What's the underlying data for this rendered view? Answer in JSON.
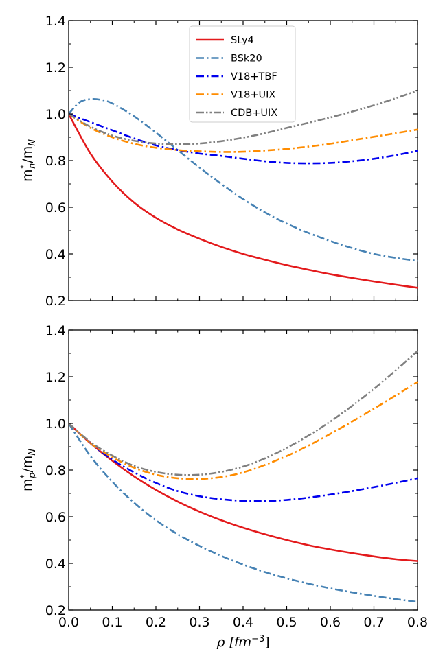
{
  "chart_data": [
    {
      "type": "line",
      "panel": "top",
      "title": "",
      "xlabel": "",
      "ylabel_base": "m",
      "ylabel_sup": "*",
      "ylabel_sub": "n",
      "ylabel_mid": "/m",
      "ylabel_sub2": "N",
      "xlim": [
        0.0,
        0.8
      ],
      "ylim": [
        0.2,
        1.4
      ],
      "xticks": [
        0.0,
        0.1,
        0.2,
        0.3,
        0.4,
        0.5,
        0.6,
        0.7,
        0.8
      ],
      "yticks": [
        0.2,
        0.4,
        0.6,
        0.8,
        1.0,
        1.2,
        1.4
      ],
      "ytick_labels": [
        "0.2",
        "0.4",
        "0.6",
        "0.8",
        "1.0",
        "1.2",
        "1.4"
      ],
      "show_xtick_labels": false,
      "legend": {
        "position": "top-center",
        "entries": [
          "SLy4",
          "BSk20",
          "V18+TBF",
          "V18+UIX",
          "CDB+UIX"
        ]
      },
      "series": [
        {
          "name": "SLy4",
          "color": "#e31a1c",
          "dash": "solid",
          "x": [
            0.0,
            0.05,
            0.1,
            0.15,
            0.2,
            0.25,
            0.3,
            0.35,
            0.4,
            0.45,
            0.5,
            0.55,
            0.6,
            0.65,
            0.7,
            0.75,
            0.8
          ],
          "values": [
            1.0,
            0.83,
            0.71,
            0.62,
            0.555,
            0.505,
            0.465,
            0.43,
            0.4,
            0.375,
            0.352,
            0.332,
            0.313,
            0.297,
            0.282,
            0.268,
            0.255
          ]
        },
        {
          "name": "BSk20",
          "color": "#4682b4",
          "dash": "dashdot",
          "x": [
            0.0,
            0.025,
            0.05,
            0.075,
            0.1,
            0.15,
            0.2,
            0.25,
            0.3,
            0.35,
            0.4,
            0.45,
            0.5,
            0.55,
            0.6,
            0.65,
            0.7,
            0.75,
            0.8
          ],
          "values": [
            1.0,
            1.05,
            1.063,
            1.06,
            1.045,
            0.99,
            0.92,
            0.845,
            0.77,
            0.7,
            0.635,
            0.578,
            0.53,
            0.49,
            0.455,
            0.425,
            0.4,
            0.383,
            0.37
          ]
        },
        {
          "name": "V18+TBF",
          "color": "#0000ee",
          "dash": "dashdot",
          "x": [
            0.0,
            0.05,
            0.1,
            0.15,
            0.2,
            0.25,
            0.3,
            0.35,
            0.4,
            0.45,
            0.5,
            0.55,
            0.6,
            0.65,
            0.7,
            0.75,
            0.8
          ],
          "values": [
            1.0,
            0.965,
            0.93,
            0.895,
            0.865,
            0.845,
            0.83,
            0.82,
            0.808,
            0.797,
            0.79,
            0.788,
            0.79,
            0.797,
            0.808,
            0.823,
            0.842
          ]
        },
        {
          "name": "V18+UIX",
          "color": "#ff8c00",
          "dash": "dashdot",
          "x": [
            0.0,
            0.05,
            0.1,
            0.15,
            0.2,
            0.25,
            0.3,
            0.35,
            0.4,
            0.45,
            0.5,
            0.55,
            0.6,
            0.65,
            0.7,
            0.75,
            0.8
          ],
          "values": [
            1.0,
            0.94,
            0.9,
            0.872,
            0.855,
            0.845,
            0.84,
            0.837,
            0.838,
            0.843,
            0.85,
            0.86,
            0.872,
            0.887,
            0.902,
            0.917,
            0.933
          ]
        },
        {
          "name": "CDB+UIX",
          "color": "#808080",
          "dash": "dashdotdot",
          "x": [
            0.0,
            0.05,
            0.1,
            0.15,
            0.2,
            0.25,
            0.3,
            0.35,
            0.4,
            0.45,
            0.5,
            0.55,
            0.6,
            0.65,
            0.7,
            0.75,
            0.8
          ],
          "values": [
            1.0,
            0.945,
            0.907,
            0.885,
            0.873,
            0.87,
            0.873,
            0.883,
            0.898,
            0.917,
            0.94,
            0.962,
            0.985,
            1.01,
            1.037,
            1.067,
            1.1
          ]
        }
      ]
    },
    {
      "type": "line",
      "panel": "bottom",
      "title": "",
      "xlabel_base": "ρ [fm",
      "xlabel_sup": "−3",
      "xlabel_end": "]",
      "ylabel_base": "m",
      "ylabel_sup": "*",
      "ylabel_sub": "p",
      "ylabel_mid": "/m",
      "ylabel_sub2": "N",
      "xlim": [
        0.0,
        0.8
      ],
      "ylim": [
        0.2,
        1.4
      ],
      "xticks": [
        0.0,
        0.1,
        0.2,
        0.3,
        0.4,
        0.5,
        0.6,
        0.7,
        0.8
      ],
      "xtick_labels": [
        "0.0",
        "0.1",
        "0.2",
        "0.3",
        "0.4",
        "0.5",
        "0.6",
        "0.7",
        "0.8"
      ],
      "yticks": [
        0.2,
        0.4,
        0.6,
        0.8,
        1.0,
        1.2,
        1.4
      ],
      "ytick_labels": [
        "0.2",
        "0.4",
        "0.6",
        "0.8",
        "1.0",
        "1.2",
        "1.4"
      ],
      "show_xtick_labels": true,
      "series": [
        {
          "name": "SLy4",
          "color": "#e31a1c",
          "dash": "solid",
          "x": [
            0.0,
            0.05,
            0.1,
            0.15,
            0.2,
            0.25,
            0.3,
            0.35,
            0.4,
            0.45,
            0.5,
            0.55,
            0.6,
            0.65,
            0.7,
            0.75,
            0.8
          ],
          "values": [
            1.0,
            0.915,
            0.84,
            0.773,
            0.715,
            0.665,
            0.622,
            0.585,
            0.553,
            0.525,
            0.5,
            0.478,
            0.46,
            0.444,
            0.43,
            0.418,
            0.41
          ]
        },
        {
          "name": "BSk20",
          "color": "#4682b4",
          "dash": "dashdot",
          "x": [
            0.0,
            0.05,
            0.1,
            0.15,
            0.2,
            0.25,
            0.3,
            0.35,
            0.4,
            0.45,
            0.5,
            0.55,
            0.6,
            0.65,
            0.7,
            0.75,
            0.8
          ],
          "values": [
            1.0,
            0.86,
            0.75,
            0.66,
            0.585,
            0.525,
            0.475,
            0.432,
            0.395,
            0.363,
            0.336,
            0.313,
            0.293,
            0.276,
            0.261,
            0.247,
            0.235
          ]
        },
        {
          "name": "V18+TBF",
          "color": "#0000ee",
          "dash": "dashdot",
          "x": [
            0.0,
            0.05,
            0.1,
            0.15,
            0.2,
            0.25,
            0.3,
            0.35,
            0.4,
            0.45,
            0.5,
            0.55,
            0.6,
            0.65,
            0.7,
            0.75,
            0.8
          ],
          "values": [
            1.0,
            0.915,
            0.845,
            0.79,
            0.745,
            0.71,
            0.688,
            0.675,
            0.668,
            0.667,
            0.672,
            0.682,
            0.695,
            0.71,
            0.727,
            0.745,
            0.765
          ]
        },
        {
          "name": "V18+UIX",
          "color": "#ff8c00",
          "dash": "dashdot",
          "x": [
            0.0,
            0.05,
            0.1,
            0.15,
            0.2,
            0.25,
            0.3,
            0.35,
            0.4,
            0.45,
            0.5,
            0.55,
            0.6,
            0.65,
            0.7,
            0.75,
            0.8
          ],
          "values": [
            1.0,
            0.915,
            0.855,
            0.81,
            0.78,
            0.765,
            0.762,
            0.77,
            0.79,
            0.822,
            0.86,
            0.905,
            0.955,
            1.008,
            1.063,
            1.12,
            1.178
          ]
        },
        {
          "name": "CDB+UIX",
          "color": "#808080",
          "dash": "dashdotdot",
          "x": [
            0.0,
            0.05,
            0.1,
            0.15,
            0.2,
            0.25,
            0.3,
            0.35,
            0.4,
            0.45,
            0.5,
            0.55,
            0.6,
            0.65,
            0.7,
            0.75,
            0.8
          ],
          "values": [
            1.0,
            0.92,
            0.862,
            0.818,
            0.792,
            0.78,
            0.78,
            0.792,
            0.815,
            0.85,
            0.895,
            0.948,
            1.008,
            1.075,
            1.148,
            1.227,
            1.31
          ]
        }
      ]
    }
  ]
}
